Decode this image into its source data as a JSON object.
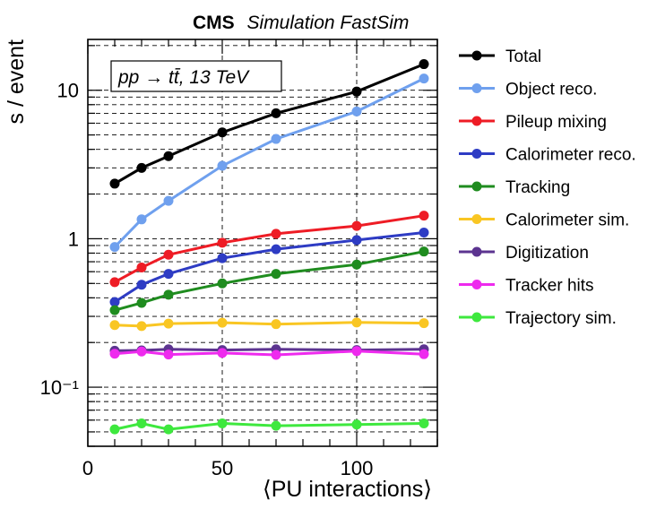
{
  "header": {
    "experiment": "CMS",
    "subtitle": "Simulation FastSim"
  },
  "annotation": "pp → tt̄, 13 TeV",
  "chart_data": {
    "type": "line",
    "xlabel": "⟨PU interactions⟩",
    "ylabel": "s / event",
    "xlim": [
      0,
      130
    ],
    "ylim": [
      0.04,
      22
    ],
    "yscale": "log",
    "grid": true,
    "legend_position": "right",
    "x_ticks": [
      "0",
      "50",
      "100"
    ],
    "y_ticks": [
      "10⁻¹",
      "1",
      "10"
    ],
    "x": [
      10,
      20,
      30,
      50,
      70,
      100,
      125
    ],
    "series": [
      {
        "name": "Total",
        "color": "#000000",
        "values": [
          2.35,
          3.0,
          3.6,
          5.2,
          7.0,
          9.8,
          15.0
        ]
      },
      {
        "name": "Object reco.",
        "color": "#6fa0ee",
        "values": [
          0.88,
          1.35,
          1.8,
          3.1,
          4.7,
          7.2,
          12.0
        ]
      },
      {
        "name": "Pileup mixing",
        "color": "#ee1c25",
        "values": [
          0.51,
          0.64,
          0.78,
          0.94,
          1.08,
          1.22,
          1.43
        ]
      },
      {
        "name": "Calorimeter reco.",
        "color": "#2e3cc4",
        "values": [
          0.375,
          0.49,
          0.58,
          0.74,
          0.85,
          0.98,
          1.1
        ]
      },
      {
        "name": "Tracking",
        "color": "#1f8c1f",
        "values": [
          0.33,
          0.37,
          0.42,
          0.5,
          0.58,
          0.67,
          0.82
        ]
      },
      {
        "name": "Calorimeter sim.",
        "color": "#f9c623",
        "values": [
          0.262,
          0.258,
          0.268,
          0.272,
          0.266,
          0.273,
          0.27
        ]
      },
      {
        "name": "Digitization",
        "color": "#5c3490",
        "values": [
          0.176,
          0.177,
          0.18,
          0.178,
          0.18,
          0.178,
          0.18
        ]
      },
      {
        "name": "Tracker hits",
        "color": "#ee2aee",
        "values": [
          0.168,
          0.174,
          0.166,
          0.17,
          0.165,
          0.175,
          0.167
        ]
      },
      {
        "name": "Trajectory sim.",
        "color": "#3ee83e",
        "values": [
          0.052,
          0.057,
          0.052,
          0.057,
          0.055,
          0.056,
          0.057
        ]
      }
    ]
  }
}
